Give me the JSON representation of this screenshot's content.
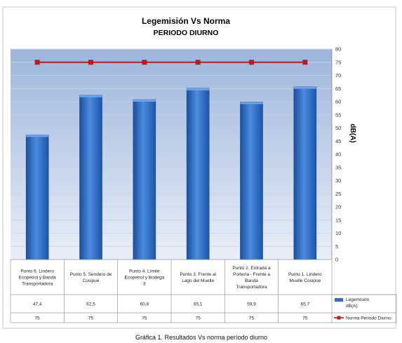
{
  "caption": "Gráfica 1. Resultados Vs norma período diurno",
  "chart_data": {
    "type": "bar",
    "title": "Legemisión Vs Norma",
    "subtitle": "PERIODO DIURNO",
    "ylabel": "dB(A)",
    "ylim": [
      0,
      80
    ],
    "yticks": [
      0,
      5,
      10,
      15,
      20,
      25,
      30,
      35,
      40,
      45,
      50,
      55,
      60,
      65,
      70,
      75,
      80
    ],
    "grid": true,
    "categories": [
      "Punto 6. Lindero Ecopetrol y Banda Transportadora",
      "Punto 5. Sendero de Cosipue",
      "Punto 4. Límite Ecopetrol y Bodega 3",
      "Punto 3. Frente al Lago del Muelle",
      "Punto 2. Entrada a Portería - Frente a Banda Transportadora",
      "Punto 1. Lindero Muelle Cosipue"
    ],
    "category_lines": [
      [
        "Punto 6. Lindero",
        "Ecopetrol y Banda",
        "Transportadora"
      ],
      [
        "Punto 5. Sendero de",
        "Cosipue"
      ],
      [
        "Punto 4. Límite",
        "Ecopetrol y Bodega",
        "3"
      ],
      [
        "Punto 3. Frente al",
        "Lago del Muelle"
      ],
      [
        "Punto 2. Entrada a",
        "Portería - Frente a",
        "Banda",
        "Transportadora"
      ],
      [
        "Punto 1. Lindero",
        "Muelle Cosipue"
      ]
    ],
    "series": [
      {
        "name": "Legemisión dB(A)",
        "name_lines": [
          "Legemisión",
          "dB(A)"
        ],
        "type": "bar",
        "color": "#2f6fc4",
        "values": [
          47.4,
          62.5,
          60.8,
          65.1,
          59.9,
          65.7
        ],
        "value_labels": [
          "47,4",
          "62,5",
          "60,8",
          "65,1",
          "59,9",
          "65,7"
        ]
      },
      {
        "name": "Norma Periodo Diurno",
        "name_lines": [
          "Norma Periodo Diurno"
        ],
        "type": "line",
        "color": "#c0181f",
        "values": [
          75,
          75,
          75,
          75,
          75,
          75
        ],
        "value_labels": [
          "75",
          "75",
          "75",
          "75",
          "75",
          "75"
        ]
      }
    ]
  }
}
